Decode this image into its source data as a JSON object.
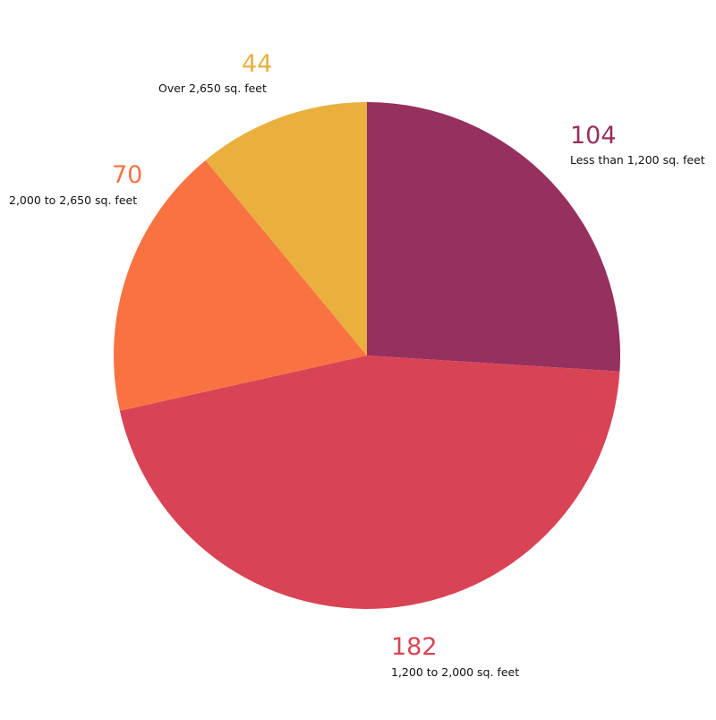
{
  "chart_data": {
    "type": "pie",
    "title": "",
    "slices": [
      {
        "label": "Less than 1,200 sq. feet",
        "value": 104,
        "color": "#95305F"
      },
      {
        "label": "1,200 to 2,000 sq. feet",
        "value": 182,
        "color": "#D84455"
      },
      {
        "label": "2,000 to 2,650 sq. feet",
        "value": 70,
        "color": "#F97342"
      },
      {
        "label": "Over 2,650 sq. feet",
        "value": 44,
        "color": "#EAB03D"
      }
    ],
    "start_angle": "12 o'clock",
    "direction": "clockwise",
    "legend": "none (labels beside slices)"
  }
}
